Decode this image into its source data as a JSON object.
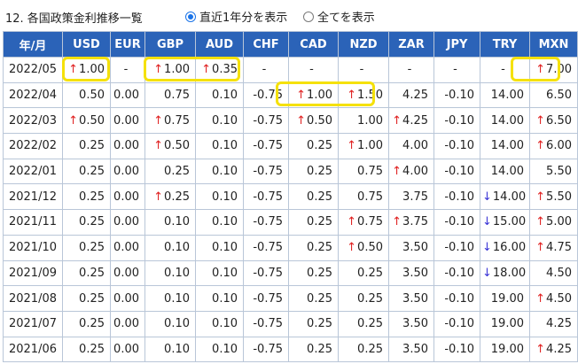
{
  "header": {
    "title": "12. 各国政策金利推移一覧",
    "radio_recent": "直近1年分を表示",
    "radio_all": "全てを表示",
    "radio_recent_checked": true
  },
  "table": {
    "columns": [
      "年/月",
      "USD",
      "EUR",
      "GBP",
      "AUD",
      "CHF",
      "CAD",
      "NZD",
      "ZAR",
      "JPY",
      "TRY",
      "MXN"
    ],
    "rows": [
      {
        "period": "2022/05",
        "cells": [
          {
            "v": "1.00",
            "a": "up"
          },
          {
            "v": "-"
          },
          {
            "v": "1.00",
            "a": "up"
          },
          {
            "v": "0.35",
            "a": "up"
          },
          {
            "v": "-"
          },
          {
            "v": "-"
          },
          {
            "v": "-"
          },
          {
            "v": "-"
          },
          {
            "v": "-"
          },
          {
            "v": "-"
          },
          {
            "v": "7.00",
            "a": "up"
          }
        ]
      },
      {
        "period": "2022/04",
        "cells": [
          {
            "v": "0.50"
          },
          {
            "v": "0.00"
          },
          {
            "v": "0.75"
          },
          {
            "v": "0.10"
          },
          {
            "v": "-0.75"
          },
          {
            "v": "1.00",
            "a": "up"
          },
          {
            "v": "1.50",
            "a": "up"
          },
          {
            "v": "4.25"
          },
          {
            "v": "-0.10"
          },
          {
            "v": "14.00"
          },
          {
            "v": "6.50"
          }
        ]
      },
      {
        "period": "2022/03",
        "cells": [
          {
            "v": "0.50",
            "a": "up"
          },
          {
            "v": "0.00"
          },
          {
            "v": "0.75",
            "a": "up"
          },
          {
            "v": "0.10"
          },
          {
            "v": "-0.75"
          },
          {
            "v": "0.50",
            "a": "up"
          },
          {
            "v": "1.00"
          },
          {
            "v": "4.25",
            "a": "up"
          },
          {
            "v": "-0.10"
          },
          {
            "v": "14.00"
          },
          {
            "v": "6.50",
            "a": "up"
          }
        ]
      },
      {
        "period": "2022/02",
        "cells": [
          {
            "v": "0.25"
          },
          {
            "v": "0.00"
          },
          {
            "v": "0.50",
            "a": "up"
          },
          {
            "v": "0.10"
          },
          {
            "v": "-0.75"
          },
          {
            "v": "0.25"
          },
          {
            "v": "1.00",
            "a": "up"
          },
          {
            "v": "4.00"
          },
          {
            "v": "-0.10"
          },
          {
            "v": "14.00"
          },
          {
            "v": "6.00",
            "a": "up"
          }
        ]
      },
      {
        "period": "2022/01",
        "cells": [
          {
            "v": "0.25"
          },
          {
            "v": "0.00"
          },
          {
            "v": "0.25"
          },
          {
            "v": "0.10"
          },
          {
            "v": "-0.75"
          },
          {
            "v": "0.25"
          },
          {
            "v": "0.75"
          },
          {
            "v": "4.00",
            "a": "up"
          },
          {
            "v": "-0.10"
          },
          {
            "v": "14.00"
          },
          {
            "v": "5.50"
          }
        ]
      },
      {
        "period": "2021/12",
        "cells": [
          {
            "v": "0.25"
          },
          {
            "v": "0.00"
          },
          {
            "v": "0.25",
            "a": "up"
          },
          {
            "v": "0.10"
          },
          {
            "v": "-0.75"
          },
          {
            "v": "0.25"
          },
          {
            "v": "0.75"
          },
          {
            "v": "3.75"
          },
          {
            "v": "-0.10"
          },
          {
            "v": "14.00",
            "a": "down"
          },
          {
            "v": "5.50",
            "a": "up"
          }
        ]
      },
      {
        "period": "2021/11",
        "cells": [
          {
            "v": "0.25"
          },
          {
            "v": "0.00"
          },
          {
            "v": "0.10"
          },
          {
            "v": "0.10"
          },
          {
            "v": "-0.75"
          },
          {
            "v": "0.25"
          },
          {
            "v": "0.75",
            "a": "up"
          },
          {
            "v": "3.75",
            "a": "up"
          },
          {
            "v": "-0.10"
          },
          {
            "v": "15.00",
            "a": "down"
          },
          {
            "v": "5.00",
            "a": "up"
          }
        ]
      },
      {
        "period": "2021/10",
        "cells": [
          {
            "v": "0.25"
          },
          {
            "v": "0.00"
          },
          {
            "v": "0.10"
          },
          {
            "v": "0.10"
          },
          {
            "v": "-0.75"
          },
          {
            "v": "0.25"
          },
          {
            "v": "0.50",
            "a": "up"
          },
          {
            "v": "3.50"
          },
          {
            "v": "-0.10"
          },
          {
            "v": "16.00",
            "a": "down"
          },
          {
            "v": "4.75",
            "a": "up"
          }
        ]
      },
      {
        "period": "2021/09",
        "cells": [
          {
            "v": "0.25"
          },
          {
            "v": "0.00"
          },
          {
            "v": "0.10"
          },
          {
            "v": "0.10"
          },
          {
            "v": "-0.75"
          },
          {
            "v": "0.25"
          },
          {
            "v": "0.25"
          },
          {
            "v": "3.50"
          },
          {
            "v": "-0.10"
          },
          {
            "v": "18.00",
            "a": "down"
          },
          {
            "v": "4.50"
          }
        ]
      },
      {
        "period": "2021/08",
        "cells": [
          {
            "v": "0.25"
          },
          {
            "v": "0.00"
          },
          {
            "v": "0.10"
          },
          {
            "v": "0.10"
          },
          {
            "v": "-0.75"
          },
          {
            "v": "0.25"
          },
          {
            "v": "0.25"
          },
          {
            "v": "3.50"
          },
          {
            "v": "-0.10"
          },
          {
            "v": "19.00"
          },
          {
            "v": "4.50",
            "a": "up"
          }
        ]
      },
      {
        "period": "2021/07",
        "cells": [
          {
            "v": "0.25"
          },
          {
            "v": "0.00"
          },
          {
            "v": "0.10"
          },
          {
            "v": "0.10"
          },
          {
            "v": "-0.75"
          },
          {
            "v": "0.25"
          },
          {
            "v": "0.25"
          },
          {
            "v": "3.50"
          },
          {
            "v": "-0.10"
          },
          {
            "v": "19.00"
          },
          {
            "v": "4.25"
          }
        ]
      },
      {
        "period": "2021/06",
        "cells": [
          {
            "v": "0.25"
          },
          {
            "v": "0.00"
          },
          {
            "v": "0.10"
          },
          {
            "v": "0.10"
          },
          {
            "v": "-0.75"
          },
          {
            "v": "0.25"
          },
          {
            "v": "0.25"
          },
          {
            "v": "3.50"
          },
          {
            "v": "-0.10"
          },
          {
            "v": "19.00"
          },
          {
            "v": "4.25",
            "a": "up"
          }
        ]
      }
    ]
  },
  "colors": {
    "header_bg": "#2b63b8",
    "arrow_up": "#e02020",
    "arrow_down": "#3a34d6",
    "highlight": "#f5e10a"
  },
  "icons": {
    "up": "red-up-arrow-icon",
    "down": "blue-down-arrow-icon"
  }
}
